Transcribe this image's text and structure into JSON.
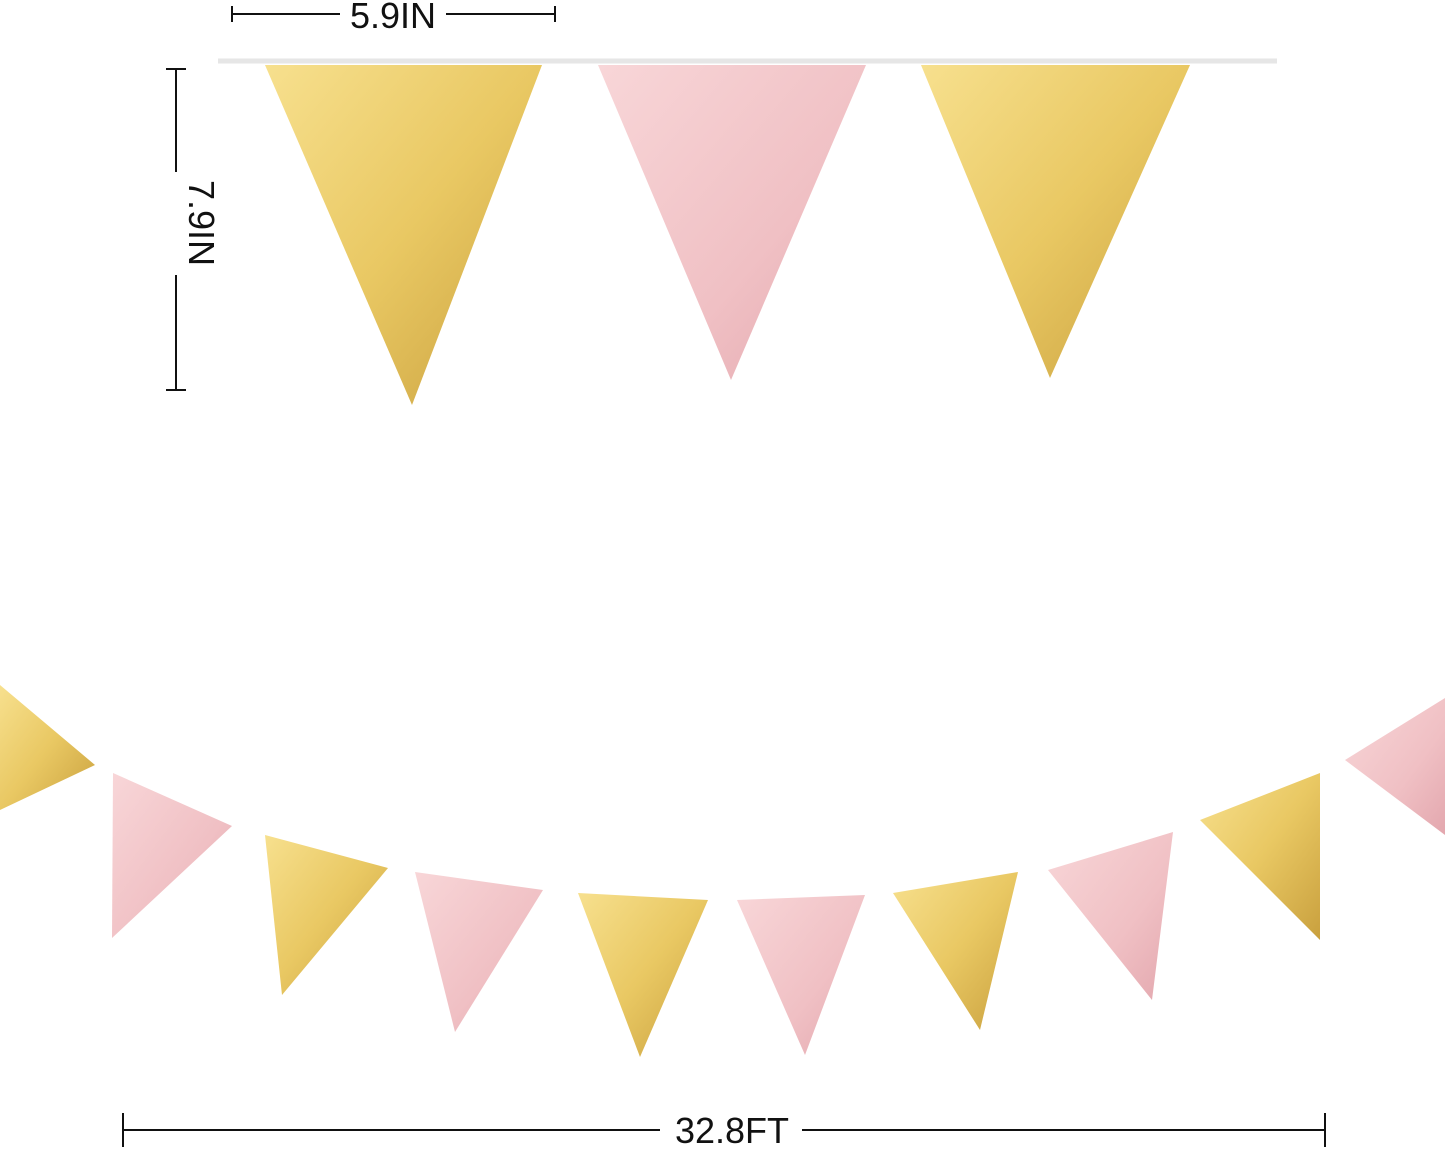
{
  "dimensions": {
    "flag_width": "5.9IN",
    "flag_height": "7.9IN",
    "total_length": "32.8FT"
  },
  "colors": {
    "gold_light": "#f7e08e",
    "gold_mid": "#e9c863",
    "gold_dark": "#c9a03e",
    "pink_light": "#f8d6d8",
    "pink_mid": "#f0c0c4",
    "pink_dark": "#e3a7ae",
    "dimension_line": "#111111",
    "string": "#e6e6e6"
  },
  "top_flags": [
    "gold",
    "pink",
    "gold"
  ],
  "bottom_flags": [
    "gold",
    "pink",
    "gold",
    "pink",
    "gold",
    "pink",
    "gold",
    "pink",
    "gold",
    "pink"
  ]
}
